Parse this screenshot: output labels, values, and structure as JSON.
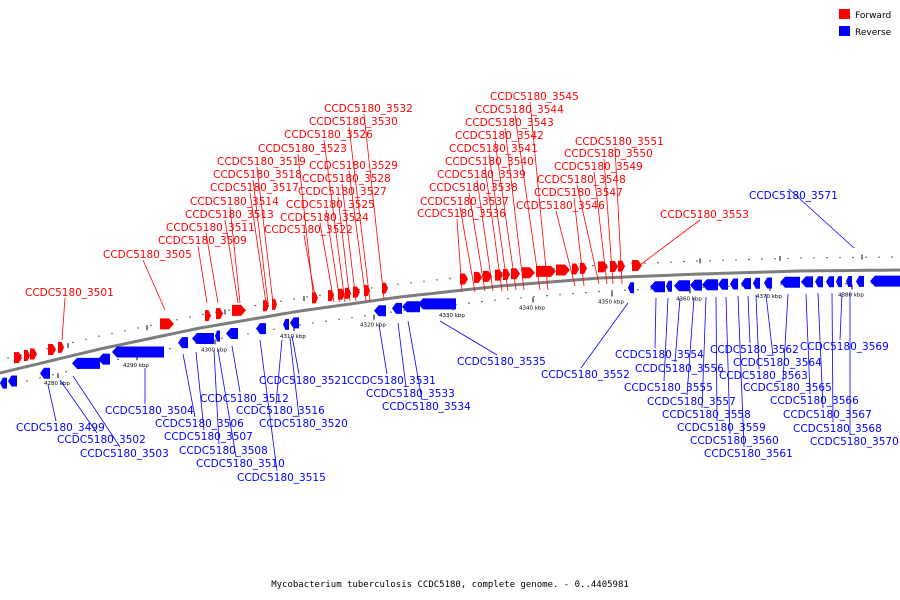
{
  "legend": {
    "forward": {
      "label": "Forward",
      "color": "#ff0000"
    },
    "reverse": {
      "label": "Reverse",
      "color": "#0000ff"
    }
  },
  "caption": "Mycobacterium tuberculosis CCDC5180, complete genome. - 0..4405981",
  "ticks": [
    "4280 kbp",
    "4290 kbp",
    "4300 kbp",
    "4310 kbp",
    "4320 kbp",
    "4330 kbp",
    "4340 kbp",
    "4350 kbp",
    "4360 kbp",
    "4370 kbp",
    "4380 kbp"
  ],
  "forward_genes": [
    "CCDC5180_3501",
    "CCDC5180_3505",
    "CCDC5180_3509",
    "CCDC5180_3511",
    "CCDC5180_3513",
    "CCDC5180_3514",
    "CCDC5180_3517",
    "CCDC5180_3518",
    "CCDC5180_3519",
    "CCDC5180_3522",
    "CCDC5180_3523",
    "CCDC5180_3524",
    "CCDC5180_3525",
    "CCDC5180_3526",
    "CCDC5180_3527",
    "CCDC5180_3528",
    "CCDC5180_3529",
    "CCDC5180_3530",
    "CCDC5180_3532",
    "CCDC5180_3536",
    "CCDC5180_3537",
    "CCDC5180_3538",
    "CCDC5180_3539",
    "CCDC5180_3540",
    "CCDC5180_3541",
    "CCDC5180_3542",
    "CCDC5180_3543",
    "CCDC5180_3544",
    "CCDC5180_3545",
    "CCDC5180_3546",
    "CCDC5180_3547",
    "CCDC5180_3548",
    "CCDC5180_3549",
    "CCDC5180_3550",
    "CCDC5180_3551",
    "CCDC5180_3553"
  ],
  "reverse_genes": [
    "CCDC5180_3499",
    "CCDC5180_3502",
    "CCDC5180_3503",
    "CCDC5180_3504",
    "CCDC5180_3506",
    "CCDC5180_3507",
    "CCDC5180_3508",
    "CCDC5180_3510",
    "CCDC5180_3512",
    "CCDC5180_3515",
    "CCDC5180_3516",
    "CCDC5180_3520",
    "CCDC5180_3521",
    "CCDC5180_3531",
    "CCDC5180_3533",
    "CCDC5180_3534",
    "CCDC5180_3535",
    "CCDC5180_3552",
    "CCDC5180_3554",
    "CCDC5180_3555",
    "CCDC5180_3556",
    "CCDC5180_3557",
    "CCDC5180_3558",
    "CCDC5180_3559",
    "CCDC5180_3560",
    "CCDC5180_3561",
    "CCDC5180_3562",
    "CCDC5180_3563",
    "CCDC5180_3564",
    "CCDC5180_3565",
    "CCDC5180_3566",
    "CCDC5180_3567",
    "CCDC5180_3568",
    "CCDC5180_3569",
    "CCDC5180_3570",
    "CCDC5180_3571"
  ]
}
